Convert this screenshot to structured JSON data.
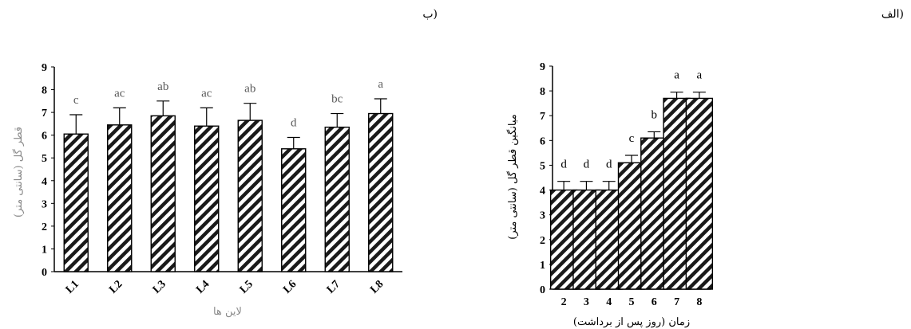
{
  "chart_data": [
    {
      "type": "bar",
      "panel_label": "الف)",
      "categories": [
        "2",
        "3",
        "4",
        "5",
        "6",
        "7",
        "8"
      ],
      "values": [
        4.0,
        4.0,
        4.0,
        5.1,
        6.1,
        7.7,
        7.7
      ],
      "errors": [
        0.35,
        0.35,
        0.35,
        0.3,
        0.25,
        0.25,
        0.25
      ],
      "letters": [
        "d",
        "d",
        "d",
        "c",
        "b",
        "a",
        "a"
      ],
      "xlabel": "زمان (روز پس از برداشت)",
      "ylabel": "میانگین قطر گل (سانتی متر)",
      "ylim": [
        0,
        9
      ],
      "yticks": [
        "0",
        "1",
        "2",
        "3",
        "4",
        "5",
        "6",
        "7",
        "8",
        "9"
      ],
      "grid": false,
      "bar_pattern": "diagonal-hatch"
    },
    {
      "type": "bar",
      "panel_label": "ب)",
      "categories": [
        "L1",
        "L2",
        "L3",
        "L4",
        "L5",
        "L6",
        "L7",
        "L8"
      ],
      "values": [
        6.05,
        6.45,
        6.85,
        6.4,
        6.65,
        5.4,
        6.35,
        6.95
      ],
      "errors": [
        0.85,
        0.75,
        0.65,
        0.8,
        0.75,
        0.5,
        0.6,
        0.65
      ],
      "letters": [
        "c",
        "ac",
        "ab",
        "ac",
        "ab",
        "d",
        "bc",
        "a"
      ],
      "xlabel": "لاین ها",
      "ylabel": "قطر گل (سانتی متر)",
      "ylim": [
        0,
        9
      ],
      "yticks": [
        "0",
        "1",
        "2",
        "3",
        "4",
        "5",
        "6",
        "7",
        "8",
        "9"
      ],
      "grid": false,
      "bar_pattern": "diagonal-hatch"
    }
  ]
}
